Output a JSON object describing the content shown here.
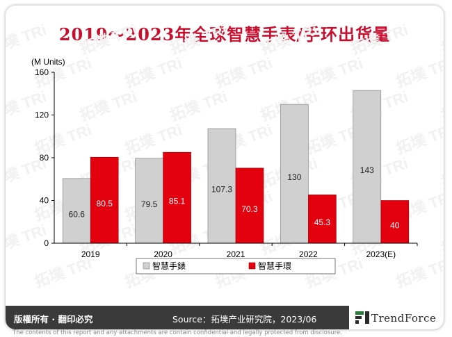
{
  "title": "2019～2023年全球智慧手表/手环出货量",
  "footer": {
    "rights": "版權所有 · 翻印必究",
    "source": "Source：拓墣产业研究院，2023/06",
    "brand": "TrendForce"
  },
  "disclaimer": "The contents of this report and any attachments are contain confidential and legally protected from disclosure.",
  "colors": {
    "title": "#c8102e",
    "watch": "#d0d0d0",
    "band": "#e3000f",
    "footer_bg": "#3a3a3a"
  },
  "chart_data": {
    "type": "bar",
    "ylabel": "(M Units)",
    "ylim": [
      0,
      160
    ],
    "yticks": [
      "0",
      "40",
      "80",
      "120",
      "160"
    ],
    "grid": false,
    "legend": "bottom",
    "categories": [
      "2019",
      "2020",
      "2021",
      "2022",
      "2023(E)"
    ],
    "series": [
      {
        "name": "智慧手錶",
        "values": [
          60.6,
          79.5,
          107.3,
          130,
          143
        ],
        "labels": [
          "60.6",
          "79.5",
          "107.3",
          "130",
          "143"
        ]
      },
      {
        "name": "智慧手環",
        "values": [
          80.5,
          85.1,
          70.3,
          45.3,
          40
        ],
        "labels": [
          "80.5",
          "85.1",
          "70.3",
          "45.3",
          "40"
        ]
      }
    ]
  }
}
